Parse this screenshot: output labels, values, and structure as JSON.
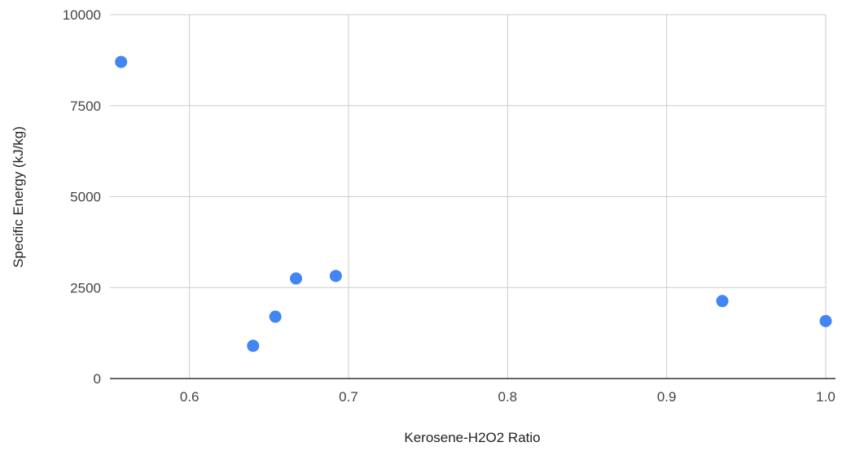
{
  "chart_data": {
    "type": "scatter",
    "title": "",
    "xlabel": "Kerosene-H2O2 Ratio",
    "ylabel": "Specific Energy (kJ/kg)",
    "xlim": [
      0.55,
      1.0
    ],
    "ylim": [
      0,
      10000
    ],
    "x_ticks": [
      "0.6",
      "0.7",
      "0.8",
      "0.9",
      "1.0"
    ],
    "y_ticks": [
      "0",
      "2500",
      "5000",
      "7500",
      "10000"
    ],
    "grid": true,
    "legend": "none",
    "series": [
      {
        "color": "#4285f4",
        "points": [
          {
            "x": 0.557,
            "y": 8700
          },
          {
            "x": 0.64,
            "y": 900
          },
          {
            "x": 0.654,
            "y": 1700
          },
          {
            "x": 0.667,
            "y": 2750
          },
          {
            "x": 0.692,
            "y": 2820
          },
          {
            "x": 0.935,
            "y": 2130
          },
          {
            "x": 1.0,
            "y": 1580
          }
        ]
      }
    ],
    "colors": {
      "grid": "#cccccc",
      "axis": "#333333",
      "point": "#4285f4"
    }
  }
}
